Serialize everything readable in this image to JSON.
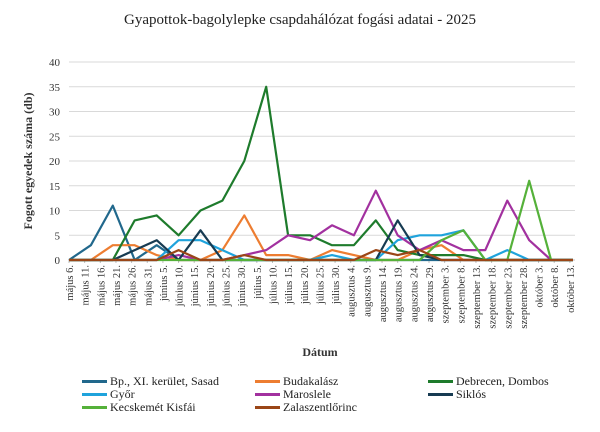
{
  "chart_data": {
    "type": "line",
    "title": "Gyapottok-bagolylepke csapdahálózat fogási adatai - 2025",
    "xlabel": "Dátum",
    "ylabel": "Fogott egyedek száma (db)",
    "ylim": [
      0,
      40
    ],
    "yticks": [
      0,
      5,
      10,
      15,
      20,
      25,
      30,
      35,
      40
    ],
    "grid": true,
    "legend_position": "bottom",
    "x_axis_type": "date",
    "xlim": [
      "2025-05-06",
      "2025-10-14"
    ],
    "x_tick_dates": [
      "2025-05-06",
      "2025-05-11",
      "2025-05-16",
      "2025-05-21",
      "2025-05-26",
      "2025-05-31",
      "2025-06-05",
      "2025-06-10",
      "2025-06-15",
      "2025-06-20",
      "2025-06-25",
      "2025-06-30",
      "2025-07-05",
      "2025-07-10",
      "2025-07-15",
      "2025-07-20",
      "2025-07-25",
      "2025-07-30",
      "2025-08-04",
      "2025-08-09",
      "2025-08-14",
      "2025-08-19",
      "2025-08-24",
      "2025-08-29",
      "2025-09-03",
      "2025-09-08",
      "2025-09-13",
      "2025-09-18",
      "2025-09-23",
      "2025-09-28",
      "2025-10-03",
      "2025-10-08",
      "2025-10-13"
    ],
    "x_tick_labels": [
      "május 6.",
      "május 11.",
      "május 16.",
      "május 21.",
      "május 26.",
      "május 31.",
      "június 5.",
      "június 10.",
      "június 15.",
      "június 20.",
      "június 25.",
      "június 30.",
      "július 5.",
      "július 10.",
      "július 15.",
      "július 20.",
      "július 25.",
      "július 30.",
      "augusztus 4.",
      "augusztus 9.",
      "augusztus 14.",
      "augusztus 19.",
      "augusztus 24.",
      "augusztus 29.",
      "szeptember 3.",
      "szeptember 8.",
      "szeptember 13.",
      "szeptember 18.",
      "szeptember 23.",
      "szeptember 28.",
      "október 3.",
      "október 8.",
      "október 13."
    ],
    "x": [
      "2025-05-06",
      "2025-05-13",
      "2025-05-20",
      "2025-05-27",
      "2025-06-03",
      "2025-06-10",
      "2025-06-17",
      "2025-06-24",
      "2025-07-01",
      "2025-07-08",
      "2025-07-15",
      "2025-07-22",
      "2025-07-29",
      "2025-08-05",
      "2025-08-12",
      "2025-08-19",
      "2025-08-26",
      "2025-09-02",
      "2025-09-09",
      "2025-09-16",
      "2025-09-23",
      "2025-09-30",
      "2025-10-07",
      "2025-10-14"
    ],
    "series": [
      {
        "name": "Bp., XI. kerület, Sasad",
        "color": "#21688c",
        "values": [
          0,
          3,
          11,
          0,
          3,
          0,
          0,
          0,
          0,
          0,
          0,
          0,
          0,
          0,
          0,
          0,
          0,
          0,
          0,
          0,
          0,
          0,
          0,
          0
        ]
      },
      {
        "name": "Budakalász",
        "color": "#ed7d31",
        "values": [
          0,
          0,
          3,
          3,
          1,
          0,
          0,
          2,
          9,
          1,
          1,
          0,
          2,
          1,
          0,
          0,
          2,
          3,
          0,
          0,
          0,
          0,
          0,
          0
        ]
      },
      {
        "name": "Debrecen, Dombos",
        "color": "#1e7b2c",
        "values": [
          0,
          0,
          0,
          8,
          9,
          5,
          10,
          12,
          20,
          35,
          5,
          5,
          3,
          3,
          8,
          2,
          1,
          1,
          1,
          0,
          0,
          0,
          0,
          0
        ]
      },
      {
        "name": "Győr",
        "color": "#1fa3dc",
        "values": [
          0,
          0,
          0,
          0,
          0,
          4,
          4,
          2,
          0,
          0,
          0,
          0,
          1,
          0,
          0,
          4,
          5,
          5,
          6,
          0,
          2,
          0,
          0,
          0
        ]
      },
      {
        "name": "Maroslele",
        "color": "#a2319f",
        "values": [
          0,
          0,
          0,
          0,
          0,
          1,
          0,
          0,
          1,
          2,
          5,
          4,
          7,
          5,
          14,
          5,
          2,
          4,
          2,
          2,
          12,
          4,
          0,
          0
        ]
      },
      {
        "name": "Siklós",
        "color": "#173b52",
        "values": [
          0,
          0,
          0,
          2,
          4,
          0,
          6,
          0,
          0,
          0,
          0,
          0,
          0,
          0,
          0,
          8,
          1,
          0,
          0,
          0,
          0,
          0,
          0,
          0
        ]
      },
      {
        "name": "Kecskemét Kisfái",
        "color": "#55b13a",
        "values": [
          0,
          0,
          0,
          0,
          0,
          0,
          0,
          0,
          0,
          0,
          0,
          0,
          0,
          0,
          0,
          0,
          0,
          4,
          6,
          0,
          0,
          16,
          0,
          0
        ]
      },
      {
        "name": "Zalaszentlőrinc",
        "color": "#9a4617",
        "values": [
          0,
          0,
          0,
          0,
          0,
          2,
          0,
          0,
          1,
          0,
          0,
          0,
          0,
          0,
          2,
          1,
          2,
          0,
          0,
          0,
          0,
          0,
          0,
          0
        ]
      }
    ]
  }
}
